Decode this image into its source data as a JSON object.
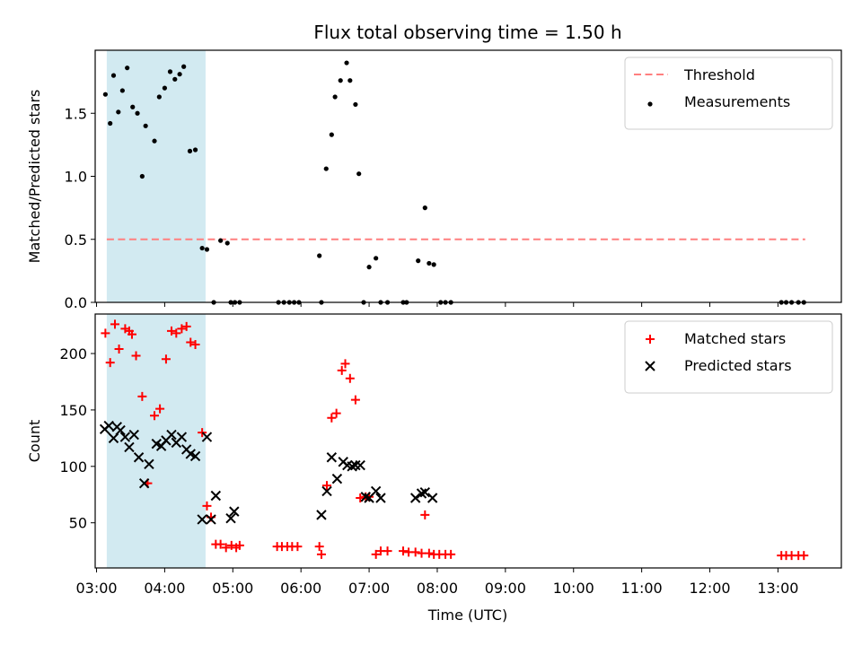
{
  "chart_data": {
    "title": "Flux total observing time = 1.50 h",
    "xlabel": "Time (UTC)",
    "x_ticks": [
      "03:00",
      "04:00",
      "05:00",
      "06:00",
      "07:00",
      "08:00",
      "09:00",
      "10:00",
      "11:00",
      "12:00",
      "13:00"
    ],
    "xlim_hours": [
      2.98,
      13.93
    ],
    "shaded_region_hours": [
      3.15,
      4.6
    ],
    "shaded_color": "#add8e6",
    "panels": [
      {
        "type": "scatter",
        "ylabel": "Matched/Predicted stars",
        "ylim": [
          0,
          2.0
        ],
        "y_ticks": [
          0.0,
          0.5,
          1.0,
          1.5
        ],
        "y_tick_labels": [
          "0.0",
          "0.5",
          "1.0",
          "1.5"
        ],
        "legend_position": "top-right",
        "threshold": {
          "name": "Threshold",
          "value": 0.5,
          "x_range": [
            3.15,
            13.4
          ],
          "color": "#ff7f7f"
        },
        "series": [
          {
            "name": "Measurements",
            "marker": "dot",
            "color": "#000000",
            "x": [
              3.13,
              3.2,
              3.25,
              3.32,
              3.38,
              3.45,
              3.53,
              3.6,
              3.67,
              3.72,
              3.85,
              3.92,
              4.0,
              4.08,
              4.15,
              4.22,
              4.28,
              4.37,
              4.45,
              4.55,
              4.62,
              4.72,
              4.82,
              4.92,
              4.97,
              5.03,
              5.1,
              5.67,
              5.75,
              5.83,
              5.9,
              5.97,
              6.27,
              6.3,
              6.37,
              6.45,
              6.5,
              6.58,
              6.67,
              6.72,
              6.8,
              6.85,
              6.92,
              7.0,
              7.1,
              7.17,
              7.27,
              7.5,
              7.55,
              7.72,
              7.82,
              7.88,
              7.95,
              8.05,
              8.12,
              8.2,
              13.05,
              13.12,
              13.2,
              13.3,
              13.38
            ],
            "y": [
              1.65,
              1.42,
              1.8,
              1.51,
              1.68,
              1.86,
              1.55,
              1.5,
              1.0,
              1.4,
              1.28,
              1.63,
              1.7,
              1.83,
              1.77,
              1.81,
              1.87,
              1.2,
              1.21,
              0.43,
              0.42,
              0.0,
              0.49,
              0.47,
              0.0,
              0.0,
              0.0,
              0.0,
              0.0,
              0.0,
              0.0,
              0.0,
              0.37,
              0.0,
              1.06,
              1.33,
              1.63,
              1.76,
              1.9,
              1.76,
              1.57,
              1.02,
              0.0,
              0.28,
              0.35,
              0.0,
              0.0,
              0.0,
              0.0,
              0.33,
              0.75,
              0.31,
              0.3,
              0.0,
              0.0,
              0.0,
              0.0,
              0.0,
              0.0,
              0.0,
              0.0
            ]
          }
        ]
      },
      {
        "type": "scatter",
        "ylabel": "Count",
        "ylim": [
          10,
          235
        ],
        "y_ticks": [
          50,
          100,
          150,
          200
        ],
        "y_tick_labels": [
          "50",
          "100",
          "150",
          "200"
        ],
        "legend_position": "top-right",
        "series": [
          {
            "name": "Matched stars",
            "marker": "plus",
            "color": "#ff0000",
            "x": [
              3.13,
              3.2,
              3.27,
              3.33,
              3.42,
              3.48,
              3.52,
              3.58,
              3.67,
              3.75,
              3.85,
              3.93,
              4.02,
              4.1,
              4.17,
              4.25,
              4.32,
              4.38,
              4.45,
              4.55,
              4.62,
              4.68,
              4.75,
              4.82,
              4.9,
              4.98,
              5.05,
              5.1,
              5.65,
              5.72,
              5.8,
              5.87,
              5.95,
              6.27,
              6.3,
              6.38,
              6.45,
              6.52,
              6.6,
              6.65,
              6.72,
              6.8,
              6.87,
              6.95,
              7.0,
              7.1,
              7.17,
              7.27,
              7.5,
              7.58,
              7.68,
              7.77,
              7.82,
              7.88,
              7.95,
              8.03,
              8.12,
              8.2,
              13.05,
              13.12,
              13.2,
              13.3,
              13.38
            ],
            "y": [
              218,
              192,
              226,
              204,
              222,
              220,
              217,
              198,
              162,
              85,
              145,
              151,
              195,
              220,
              218,
              222,
              224,
              210,
              208,
              130,
              65,
              55,
              31,
              31,
              28,
              30,
              28,
              30,
              29,
              29,
              29,
              29,
              29,
              29,
              22,
              83,
              143,
              147,
              185,
              191,
              178,
              159,
              72,
              73,
              73,
              22,
              25,
              25,
              25,
              24,
              24,
              23,
              57,
              23,
              22,
              22,
              22,
              22,
              21,
              21,
              21,
              21,
              21
            ]
          },
          {
            "name": "Predicted stars",
            "marker": "x",
            "color": "#000000",
            "x": [
              3.12,
              3.18,
              3.25,
              3.3,
              3.35,
              3.42,
              3.48,
              3.55,
              3.62,
              3.7,
              3.77,
              3.88,
              3.95,
              4.02,
              4.1,
              4.17,
              4.25,
              4.32,
              4.38,
              4.45,
              4.55,
              4.62,
              4.68,
              4.75,
              4.97,
              5.02,
              6.3,
              6.38,
              6.45,
              6.53,
              6.62,
              6.68,
              6.75,
              6.8,
              6.87,
              6.95,
              7.0,
              7.1,
              7.17,
              7.68,
              7.77,
              7.82,
              7.93
            ],
            "y": [
              133,
              136,
              125,
              135,
              132,
              126,
              117,
              128,
              108,
              85,
              102,
              120,
              118,
              123,
              128,
              121,
              126,
              115,
              111,
              109,
              53,
              126,
              53,
              74,
              54,
              60,
              57,
              78,
              108,
              89,
              104,
              101,
              100,
              101,
              101,
              73,
              72,
              78,
              72,
              72,
              76,
              77,
              72
            ]
          }
        ]
      }
    ]
  }
}
